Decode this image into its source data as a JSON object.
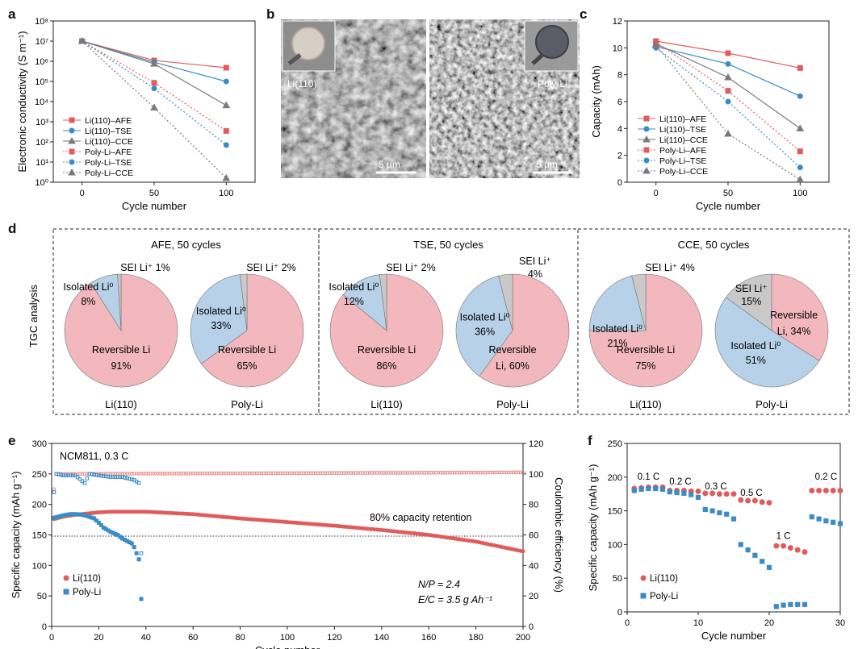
{
  "colors": {
    "li110": "#e05c5c",
    "li110_light": "#e78a8a",
    "tse": "#3b8cc6",
    "cce": "#7a7a7a",
    "pie_reversible": "#f2b8bd",
    "pie_isolated": "#b7d1e8",
    "pie_sei": "#c9c9c9"
  },
  "panels": {
    "a": "a",
    "b": "b",
    "c": "c",
    "d": "d",
    "e": "e",
    "f": "f"
  },
  "sem": {
    "left_label": "Li(110)",
    "right_label": "Poly-Li",
    "scale_left": "5 µm",
    "scale_right": "5 µm"
  },
  "chart_data": [
    {
      "id": "a",
      "type": "line",
      "xlabel": "Cycle number",
      "ylabel": "Electronic conductivity (S m⁻¹)",
      "yscale": "log",
      "ylim": [
        1,
        100000000
      ],
      "xlim": [
        -20,
        120
      ],
      "xticks": [
        "0",
        "50",
        "100"
      ],
      "yticks": [
        "10⁰",
        "10¹",
        "10²",
        "10³",
        "10⁴",
        "10⁵",
        "10⁶",
        "10⁷",
        "10⁸"
      ],
      "x": [
        0,
        50,
        100
      ],
      "series": [
        {
          "name": "Li(110)–AFE",
          "values": [
            10000000,
            1100000,
            480000
          ],
          "marker": "square",
          "color": "#e05c5c",
          "dash": false
        },
        {
          "name": "Li(110)–TSE",
          "values": [
            10000000,
            900000,
            100000
          ],
          "marker": "circle",
          "color": "#3b8cc6",
          "dash": false
        },
        {
          "name": "Li(110)–CCE",
          "values": [
            10000000,
            750000,
            6500
          ],
          "marker": "triangle",
          "color": "#7a7a7a",
          "dash": false
        },
        {
          "name": "Poly-Li–AFE",
          "values": [
            10000000,
            85000,
            350
          ],
          "marker": "square",
          "color": "#e05c5c",
          "dash": true
        },
        {
          "name": "Poly-Li–TSE",
          "values": [
            10000000,
            45000,
            70
          ],
          "marker": "circle",
          "color": "#3b8cc6",
          "dash": true
        },
        {
          "name": "Poly-Li–CCE",
          "values": [
            10000000,
            5000,
            1.6
          ],
          "marker": "triangle",
          "color": "#7a7a7a",
          "dash": true
        }
      ]
    },
    {
      "id": "c",
      "type": "line",
      "xlabel": "Cycle number",
      "ylabel": "Capacity (mAh)",
      "ylim": [
        0,
        12
      ],
      "xlim": [
        -20,
        120
      ],
      "xticks": [
        "0",
        "50",
        "100"
      ],
      "yticks": [
        "0",
        "2",
        "4",
        "6",
        "8",
        "10",
        "12"
      ],
      "x": [
        0,
        50,
        100
      ],
      "series": [
        {
          "name": "Li(110)–AFE",
          "values": [
            10.5,
            9.6,
            8.5
          ],
          "marker": "square",
          "color": "#e05c5c",
          "dash": false
        },
        {
          "name": "Li(110)–TSE",
          "values": [
            10.1,
            8.8,
            6.4
          ],
          "marker": "circle",
          "color": "#3b8cc6",
          "dash": false
        },
        {
          "name": "Li(110)–CCE",
          "values": [
            10.3,
            7.8,
            4.0
          ],
          "marker": "triangle",
          "color": "#7a7a7a",
          "dash": false
        },
        {
          "name": "Poly-Li–AFE",
          "values": [
            10.4,
            6.8,
            2.3
          ],
          "marker": "square",
          "color": "#e05c5c",
          "dash": true
        },
        {
          "name": "Poly-Li–TSE",
          "values": [
            10.0,
            6.0,
            1.1
          ],
          "marker": "circle",
          "color": "#3b8cc6",
          "dash": true
        },
        {
          "name": "Poly-Li–CCE",
          "values": [
            10.2,
            3.6,
            0.2
          ],
          "marker": "triangle",
          "color": "#7a7a7a",
          "dash": true
        }
      ]
    },
    {
      "id": "d",
      "type": "pie",
      "ylabel": "TGC analysis",
      "groups": [
        {
          "title": "AFE, 50 cycles",
          "pies": [
            {
              "label": "Li(110)",
              "slices": [
                {
                  "name": "Reversible Li",
                  "value": 91,
                  "text": [
                    "Reversible Li",
                    "91%"
                  ]
                },
                {
                  "name": "Isolated Li",
                  "value": 8,
                  "text": [
                    "Isolated Li⁰",
                    "8%"
                  ]
                },
                {
                  "name": "SEI Li",
                  "value": 1,
                  "text": [
                    "SEI Li⁺ 1%"
                  ]
                }
              ]
            },
            {
              "label": "Poly-Li",
              "slices": [
                {
                  "name": "Reversible Li",
                  "value": 65,
                  "text": [
                    "Reversible Li",
                    "65%"
                  ]
                },
                {
                  "name": "Isolated Li",
                  "value": 33,
                  "text": [
                    "Isolated Li⁰",
                    "33%"
                  ]
                },
                {
                  "name": "SEI Li",
                  "value": 2,
                  "text": [
                    "SEI Li⁺ 2%"
                  ]
                }
              ]
            }
          ]
        },
        {
          "title": "TSE, 50 cycles",
          "pies": [
            {
              "label": "Li(110)",
              "slices": [
                {
                  "name": "Reversible Li",
                  "value": 86,
                  "text": [
                    "Reversible Li",
                    "86%"
                  ]
                },
                {
                  "name": "Isolated Li",
                  "value": 12,
                  "text": [
                    "Isolated Li⁰",
                    "12%"
                  ]
                },
                {
                  "name": "SEI Li",
                  "value": 2,
                  "text": [
                    "SEI Li⁺ 2%"
                  ]
                }
              ]
            },
            {
              "label": "Poly-Li",
              "slices": [
                {
                  "name": "Reversible Li",
                  "value": 60,
                  "text": [
                    "Reversible",
                    "Li, 60%"
                  ]
                },
                {
                  "name": "Isolated Li",
                  "value": 36,
                  "text": [
                    "Isolated Li⁰",
                    "36%"
                  ]
                },
                {
                  "name": "SEI Li",
                  "value": 4,
                  "text": [
                    "SEI Li⁺",
                    "4%"
                  ]
                }
              ]
            }
          ]
        },
        {
          "title": "CCE, 50 cycles",
          "pies": [
            {
              "label": "Li(110)",
              "slices": [
                {
                  "name": "Reversible Li",
                  "value": 75,
                  "text": [
                    "Reversible Li",
                    "75%"
                  ]
                },
                {
                  "name": "Isolated Li",
                  "value": 21,
                  "text": [
                    "Isolated Li⁰",
                    "21%"
                  ]
                },
                {
                  "name": "SEI Li",
                  "value": 4,
                  "text": [
                    "SEI Li⁺ 4%"
                  ]
                }
              ]
            },
            {
              "label": "Poly-Li",
              "slices": [
                {
                  "name": "Reversible Li",
                  "value": 34,
                  "text": [
                    "Reversible",
                    "Li, 34%"
                  ]
                },
                {
                  "name": "Isolated Li",
                  "value": 51,
                  "text": [
                    "Isolated Li⁰",
                    "51%"
                  ]
                },
                {
                  "name": "SEI Li",
                  "value": 15,
                  "text": [
                    "SEI Li⁺",
                    "15%"
                  ]
                }
              ]
            }
          ]
        }
      ]
    },
    {
      "id": "e",
      "type": "scatter",
      "xlabel": "Cycle number",
      "ylabel": "Specific capacity (mAh g⁻¹)",
      "y2label": "Coulombic efficiency (%)",
      "xlim": [
        0,
        200
      ],
      "ylim": [
        0,
        300
      ],
      "y2lim": [
        0,
        120
      ],
      "xticks": [
        "0",
        "20",
        "40",
        "60",
        "80",
        "100",
        "120",
        "140",
        "160",
        "180",
        "200"
      ],
      "yticks": [
        "0",
        "50",
        "100",
        "150",
        "200",
        "250",
        "300"
      ],
      "y2ticks": [
        "0",
        "20",
        "40",
        "60",
        "80",
        "100",
        "120"
      ],
      "annotation_top": "NCM811, 0.3 C",
      "annotation_retention": "80% capacity retention",
      "retention_line": 148,
      "annotation_np": "N/P = 2.4",
      "annotation_ec": "E/C = 3.5 g Ah⁻¹",
      "legend": [
        "Li(110)",
        "Poly-Li"
      ],
      "series": [
        {
          "name": "Li(110) capacity",
          "x": [
            1,
            5,
            10,
            15,
            20,
            25,
            30,
            40,
            60,
            80,
            100,
            120,
            140,
            160,
            180,
            190,
            200
          ],
          "values": [
            176,
            180,
            183,
            185,
            187,
            188,
            188,
            188,
            184,
            177,
            171,
            165,
            158,
            150,
            139,
            131,
            123
          ]
        },
        {
          "name": "Poly-Li capacity",
          "x": [
            1,
            3,
            5,
            8,
            10,
            13,
            15,
            18,
            20,
            22,
            25,
            28,
            30,
            32,
            34,
            35,
            36,
            37,
            38
          ],
          "values": [
            178,
            180,
            182,
            184,
            184,
            183,
            181,
            177,
            170,
            162,
            155,
            150,
            144,
            140,
            136,
            130,
            120,
            110,
            45
          ]
        },
        {
          "name": "Li(110) CE",
          "x": [
            1,
            2,
            200
          ],
          "values": [
            90,
            100,
            101
          ]
        },
        {
          "name": "Poly-Li CE",
          "x": [
            1,
            2,
            5,
            10,
            14,
            16,
            20,
            25,
            30,
            35,
            37,
            38
          ],
          "values": [
            88,
            100,
            99,
            99,
            94,
            100,
            99,
            98,
            98,
            96,
            94,
            48
          ]
        }
      ]
    },
    {
      "id": "f",
      "type": "scatter",
      "xlabel": "Cycle number",
      "ylabel": "Specific capacity (mAh g⁻¹)",
      "xlim": [
        0,
        30
      ],
      "ylim": [
        0,
        250
      ],
      "xticks": [
        "0",
        "10",
        "20",
        "30"
      ],
      "yticks": [
        "0",
        "50",
        "100",
        "150",
        "200",
        "250"
      ],
      "rate_labels": [
        "0.1 C",
        "0.2 C",
        "0.3 C",
        "0.5 C",
        "1 C",
        "0.2 C"
      ],
      "legend": [
        "Li(110)",
        "Poly-Li"
      ],
      "x": [
        1,
        2,
        3,
        4,
        5,
        6,
        7,
        8,
        9,
        10,
        11,
        12,
        13,
        14,
        15,
        16,
        17,
        18,
        19,
        20,
        21,
        22,
        23,
        24,
        25,
        26,
        27,
        28,
        29,
        30
      ],
      "series": [
        {
          "name": "Li(110)",
          "values": [
            183,
            184,
            185,
            185,
            185,
            180,
            180,
            180,
            179,
            179,
            176,
            176,
            175,
            175,
            175,
            166,
            165,
            165,
            163,
            162,
            98,
            98,
            95,
            92,
            89,
            180,
            180,
            180,
            180,
            180
          ]
        },
        {
          "name": "Poly-Li",
          "values": [
            180,
            182,
            183,
            183,
            182,
            178,
            177,
            176,
            174,
            170,
            152,
            150,
            147,
            145,
            138,
            100,
            92,
            84,
            75,
            66,
            8,
            10,
            11,
            11,
            11,
            141,
            138,
            135,
            133,
            131
          ]
        }
      ]
    }
  ]
}
